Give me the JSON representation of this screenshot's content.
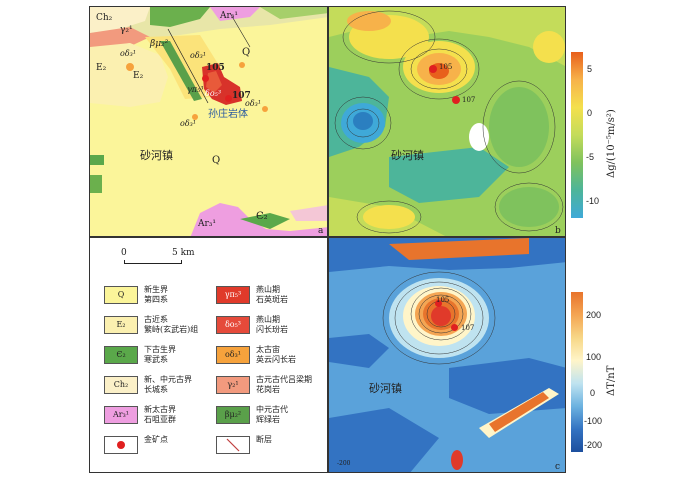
{
  "panels": {
    "a": {
      "tag": "a",
      "labels": {
        "ch2": "Ch₂",
        "gamma21": "γ₂¹",
        "ar3_top": "Ar₃¹",
        "e2_left": "E₂",
        "e2_mid": "E₂",
        "beta_mu2": "βμ₂²",
        "od31_a": "οδ₃¹",
        "od31_b": "οδ₃¹",
        "od31_c": "οδ₃¹",
        "od31_d": "οδ₃¹",
        "gamma_pi53": "γπ₅³",
        "delta_o53": "δο₅³",
        "q_top": "Q",
        "q_mid": "Q",
        "site105": "105",
        "site107": "107",
        "pluton": "孙庄岩体",
        "town": "砂河镇",
        "ar3_bottom": "Ar₃¹",
        "c2": "Є₂"
      }
    },
    "b": {
      "tag": "b",
      "site105": "105",
      "site107": "107",
      "town": "砂河镇"
    },
    "c": {
      "tag": "c",
      "site105": "105",
      "site107": "107",
      "town": "砂河镇",
      "contour_minus200": "-200"
    }
  },
  "colorbar_gravity": {
    "title": "Δg/(10⁻⁵m/s²)",
    "ticks": [
      "5",
      "0",
      "-5",
      "-10"
    ],
    "colors": [
      "#e8601c",
      "#f7b24a",
      "#f4e04d",
      "#c4dc5a",
      "#7fc25d",
      "#4db59a",
      "#3fa9d8"
    ]
  },
  "colorbar_magnetic": {
    "title": "ΔT/nT",
    "ticks": [
      "200",
      "100",
      "0",
      "-100",
      "-200"
    ],
    "colors": [
      "#e8742c",
      "#f4a553",
      "#f7d787",
      "#fff5c9",
      "#bfe3f0",
      "#6cb2e0",
      "#3373c2",
      "#1d4f9e"
    ]
  },
  "scalebar": {
    "zero": "0",
    "distance": "5 km"
  },
  "legend": [
    {
      "symbol": "Q",
      "color": "#fbf59a",
      "text": "新生界\n第四系"
    },
    {
      "symbol": "γπ₅³",
      "color": "#e03a2a",
      "text": "燕山期\n石英斑岩"
    },
    {
      "symbol": "E₂",
      "color": "#fbf0b0",
      "text": "古近系\n繁峙(玄武岩)组"
    },
    {
      "symbol": "δο₅³",
      "color": "#e54a3a",
      "text": "燕山期\n闪长玢岩"
    },
    {
      "symbol": "Є₂",
      "color": "#5aa84a",
      "text": "下古生界\n寒武系"
    },
    {
      "symbol": "οδ₃¹",
      "color": "#f6a23c",
      "text": "太古宙\n英云闪长岩"
    },
    {
      "symbol": "Ch₂",
      "color": "#fbf0c8",
      "text": "新、中元古界\n长城系"
    },
    {
      "symbol": "γ₂¹",
      "color": "#f29a7e",
      "text": "古元古代吕梁期\n花岗岩"
    },
    {
      "symbol": "Ar₃¹",
      "color": "#ee9ee0",
      "text": "新太古界\n石咀亚群"
    },
    {
      "symbol": "βμ₂²",
      "color": "#5aa04a",
      "text": "中元古代\n辉绿岩"
    },
    {
      "symbol": "gold-point",
      "color": "#e02020",
      "text": "金矿点"
    },
    {
      "symbol": "fault",
      "color": "#c04040",
      "text": "断层"
    }
  ],
  "colors": {
    "quaternary": "#fbf59a",
    "site_red": "#e02020",
    "pluton_red": "#d8322a"
  }
}
